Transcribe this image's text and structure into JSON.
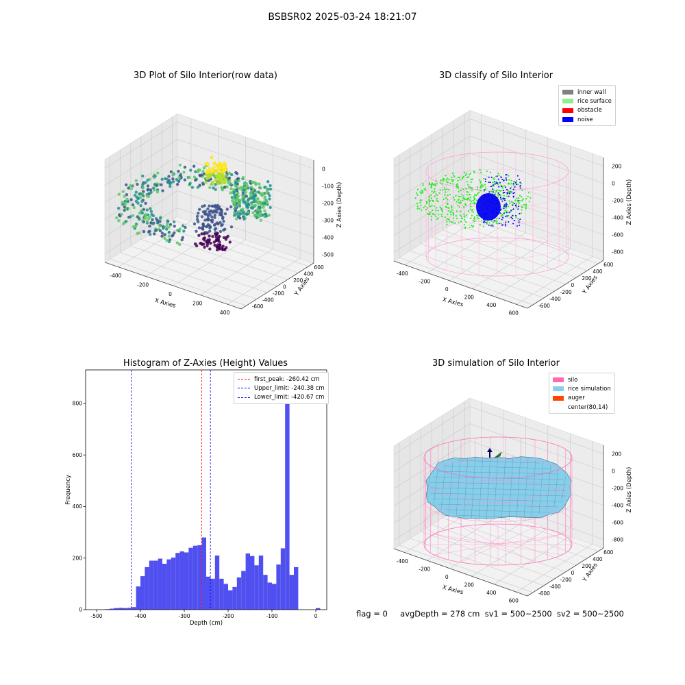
{
  "figure": {
    "suptitle": "BSBSR02 2025-03-24 18:21:07"
  },
  "chart_data": [
    {
      "type": "scatter",
      "title": "3D Plot of Silo Interior(row data)",
      "xlabel": "X Axies",
      "ylabel": "Y Axies",
      "zlabel": "Z Axies (Depth)",
      "x_ticks": [
        "-400",
        "-200",
        "0",
        "200",
        "400"
      ],
      "y_ticks": [
        "-600",
        "-400",
        "-200",
        "0",
        "200",
        "400",
        "600"
      ],
      "z_ticks": [
        "0",
        "-100",
        "-200",
        "-300",
        "-400",
        "-500"
      ],
      "colormap": "viridis"
    },
    {
      "type": "scatter",
      "title": "3D classify of Silo Interior",
      "xlabel": "X Axies",
      "ylabel": "Y Axies",
      "zlabel": "Z Axies (Depth)",
      "x_ticks": [
        "-400",
        "-200",
        "0",
        "200",
        "400",
        "600"
      ],
      "y_ticks": [
        "-600",
        "-400",
        "-200",
        "0",
        "200",
        "400",
        "600"
      ],
      "z_ticks": [
        "200",
        "0",
        "-200",
        "-400",
        "-600",
        "-800"
      ],
      "legend": [
        {
          "label": "inner wall",
          "color": "#808080"
        },
        {
          "label": "rice surface",
          "color": "#90ee90"
        },
        {
          "label": "obstacle",
          "color": "#ff0000"
        },
        {
          "label": "noise",
          "color": "#0000ff"
        }
      ],
      "legend_position": "top-right"
    },
    {
      "type": "bar",
      "title": "Histogram of Z-Axies (Height) Values",
      "xlabel": "Depth (cm)",
      "ylabel": "Frequency",
      "xlim": [
        -525,
        25
      ],
      "ylim": [
        0,
        930
      ],
      "x_ticks": [
        -500,
        -400,
        -300,
        -200,
        -100,
        0
      ],
      "y_ticks": [
        0,
        200,
        400,
        600,
        800
      ],
      "bin_width": 10,
      "bins": [
        [
          -480,
          2
        ],
        [
          -470,
          4
        ],
        [
          -460,
          6
        ],
        [
          -450,
          7
        ],
        [
          -440,
          6
        ],
        [
          -430,
          7
        ],
        [
          -420,
          10
        ],
        [
          -410,
          90
        ],
        [
          -400,
          130
        ],
        [
          -390,
          165
        ],
        [
          -380,
          190
        ],
        [
          -370,
          190
        ],
        [
          -360,
          198
        ],
        [
          -350,
          178
        ],
        [
          -340,
          195
        ],
        [
          -330,
          202
        ],
        [
          -320,
          220
        ],
        [
          -310,
          226
        ],
        [
          -300,
          222
        ],
        [
          -290,
          240
        ],
        [
          -280,
          248
        ],
        [
          -270,
          250
        ],
        [
          -260,
          280
        ],
        [
          -250,
          128
        ],
        [
          -240,
          120
        ],
        [
          -230,
          210
        ],
        [
          -220,
          120
        ],
        [
          -210,
          100
        ],
        [
          -200,
          75
        ],
        [
          -190,
          88
        ],
        [
          -180,
          125
        ],
        [
          -170,
          150
        ],
        [
          -160,
          218
        ],
        [
          -150,
          208
        ],
        [
          -140,
          172
        ],
        [
          -130,
          210
        ],
        [
          -120,
          135
        ],
        [
          -110,
          105
        ],
        [
          -100,
          100
        ],
        [
          -90,
          175
        ],
        [
          -80,
          238
        ],
        [
          -70,
          880
        ],
        [
          -60,
          135
        ],
        [
          -50,
          165
        ],
        [
          0,
          6
        ]
      ],
      "bar_color": "#5050f0",
      "vlines": [
        {
          "label": "first_peak: -260.42 cm",
          "x": -260.42,
          "color": "#ff0000"
        },
        {
          "label": "Upper_limit: -240.38 cm",
          "x": -240.38,
          "color": "#0000ff"
        },
        {
          "label": "Lower_limit: -420.67 cm",
          "x": -420.67,
          "color": "#0000ff"
        }
      ],
      "legend_position": "top-right"
    },
    {
      "type": "area",
      "title": "3D simulation of Silo Interior",
      "xlabel": "X Axies",
      "ylabel": "Y Axies",
      "zlabel": "Z Axies (Depth)",
      "x_ticks": [
        "-400",
        "-200",
        "0",
        "200",
        "400",
        "600"
      ],
      "y_ticks": [
        "-600",
        "-400",
        "-200",
        "0",
        "200",
        "400",
        "600"
      ],
      "z_ticks": [
        "200",
        "0",
        "-200",
        "-400",
        "-600",
        "-800"
      ],
      "legend": [
        {
          "label": "silo",
          "color": "#ff69b4"
        },
        {
          "label": "rice simulation",
          "color": "#87ceeb"
        },
        {
          "label": "auger",
          "color": "#ff4500"
        },
        {
          "label": "center(80,14)",
          "color": ""
        }
      ],
      "legend_position": "top-right"
    }
  ],
  "status": {
    "flag": "flag = 0",
    "avg_depth": "avgDepth = 278 cm",
    "sv1": "sv1 = 500~2500",
    "sv2": "sv2 = 500~2500"
  }
}
